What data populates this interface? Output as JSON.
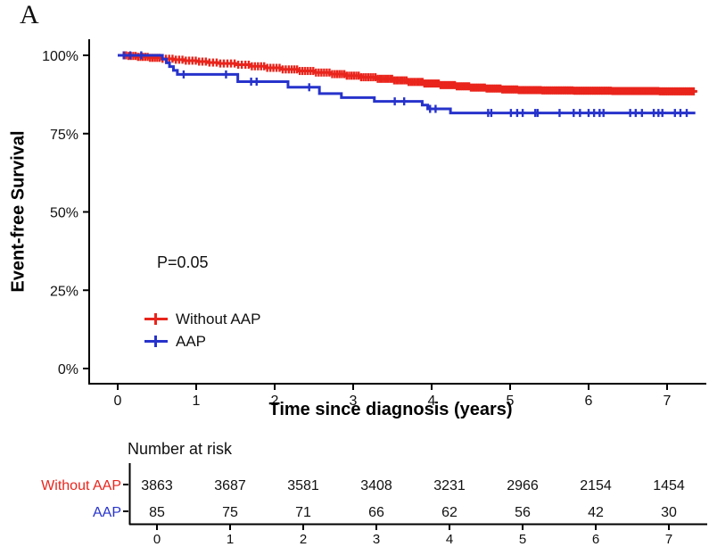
{
  "panel_label": "A",
  "colors": {
    "red": "#E9251C",
    "blue": "#2733CB",
    "axis": "#000000",
    "text": "#111111"
  },
  "chart_data": {
    "type": "line",
    "subtype": "kaplan-meier-step",
    "title": "",
    "xlabel": "Time since diagnosis (years)",
    "ylabel": "Event-free Survival",
    "annotation": "P=0.05",
    "xlim": [
      0,
      7.45
    ],
    "ylim": [
      0,
      100
    ],
    "x_ticks": [
      0,
      1,
      2,
      3,
      4,
      5,
      6,
      7
    ],
    "y_ticks": [
      100,
      75,
      50,
      25,
      0
    ],
    "y_tick_labels": [
      "100%",
      "75%",
      "50%",
      "25%",
      "0%"
    ],
    "grid": false,
    "legend_position": "inside-lower-left",
    "legend": [
      {
        "name": "Without AAP",
        "color_key": "red"
      },
      {
        "name": "AAP",
        "color_key": "blue"
      }
    ],
    "series": [
      {
        "name": "Without AAP",
        "color_key": "red",
        "steps": [
          [
            0,
            100
          ],
          [
            0.12,
            99.8
          ],
          [
            0.25,
            99.5
          ],
          [
            0.4,
            99.2
          ],
          [
            0.55,
            98.9
          ],
          [
            0.7,
            98.6
          ],
          [
            0.85,
            98.3
          ],
          [
            1.0,
            98.0
          ],
          [
            1.15,
            97.7
          ],
          [
            1.3,
            97.4
          ],
          [
            1.5,
            97.0
          ],
          [
            1.7,
            96.5
          ],
          [
            1.9,
            96.0
          ],
          [
            2.1,
            95.5
          ],
          [
            2.3,
            95.0
          ],
          [
            2.5,
            94.5
          ],
          [
            2.7,
            94.0
          ],
          [
            2.9,
            93.5
          ],
          [
            3.1,
            93.0
          ],
          [
            3.3,
            92.5
          ],
          [
            3.5,
            92.0
          ],
          [
            3.7,
            91.5
          ],
          [
            3.9,
            91.0
          ],
          [
            4.1,
            90.5
          ],
          [
            4.3,
            90.1
          ],
          [
            4.5,
            89.7
          ],
          [
            4.7,
            89.4
          ],
          [
            4.9,
            89.1
          ],
          [
            5.1,
            88.9
          ],
          [
            5.4,
            88.8
          ],
          [
            5.8,
            88.7
          ],
          [
            6.3,
            88.6
          ],
          [
            6.9,
            88.5
          ],
          [
            7.38,
            88.5
          ]
        ],
        "censor_bands": [
          {
            "from": 0.06,
            "to": 0.55,
            "count": 16
          },
          {
            "from": 0.55,
            "to": 1.1,
            "count": 13
          },
          {
            "from": 1.1,
            "to": 1.65,
            "count": 12
          },
          {
            "from": 1.65,
            "to": 2.2,
            "count": 14
          },
          {
            "from": 2.2,
            "to": 2.75,
            "count": 16
          },
          {
            "from": 2.75,
            "to": 3.3,
            "count": 18
          },
          {
            "from": 3.3,
            "to": 3.85,
            "count": 21
          },
          {
            "from": 3.85,
            "to": 4.4,
            "count": 24
          },
          {
            "from": 4.4,
            "to": 5.0,
            "count": 27
          },
          {
            "from": 5.0,
            "to": 5.6,
            "count": 30
          },
          {
            "from": 5.6,
            "to": 6.2,
            "count": 32
          },
          {
            "from": 6.2,
            "to": 6.8,
            "count": 32
          },
          {
            "from": 6.8,
            "to": 7.35,
            "count": 28
          }
        ]
      },
      {
        "name": "AAP",
        "color_key": "blue",
        "steps": [
          [
            0,
            100
          ],
          [
            0.57,
            98.8
          ],
          [
            0.62,
            97.6
          ],
          [
            0.66,
            96.4
          ],
          [
            0.71,
            95.2
          ],
          [
            0.76,
            93.9
          ],
          [
            1.53,
            91.6
          ],
          [
            2.17,
            89.8
          ],
          [
            2.57,
            87.8
          ],
          [
            2.85,
            86.5
          ],
          [
            3.27,
            85.3
          ],
          [
            3.88,
            84.1
          ],
          [
            3.95,
            82.9
          ],
          [
            4.24,
            81.6
          ],
          [
            7.36,
            81.6
          ]
        ],
        "censor_times": [
          0.08,
          0.16,
          0.3,
          0.84,
          1.38,
          1.7,
          1.77,
          2.44,
          3.53,
          3.65,
          3.98,
          4.05,
          4.72,
          4.76,
          5.01,
          5.09,
          5.16,
          5.32,
          5.35,
          5.63,
          5.81,
          5.89,
          6.0,
          6.07,
          6.14,
          6.19,
          6.53,
          6.6,
          6.68,
          6.83,
          6.89,
          6.94,
          7.1,
          7.17,
          7.25
        ]
      }
    ]
  },
  "risk_table": {
    "title": "Number at risk",
    "x_ticks": [
      0,
      1,
      2,
      3,
      4,
      5,
      6,
      7
    ],
    "rows": [
      {
        "label": "Without AAP",
        "color_key": "red",
        "values": [
          3863,
          3687,
          3581,
          3408,
          3231,
          2966,
          2154,
          1454
        ]
      },
      {
        "label": "AAP",
        "color_key": "blue",
        "values": [
          85,
          75,
          71,
          66,
          62,
          56,
          42,
          30
        ]
      }
    ]
  }
}
